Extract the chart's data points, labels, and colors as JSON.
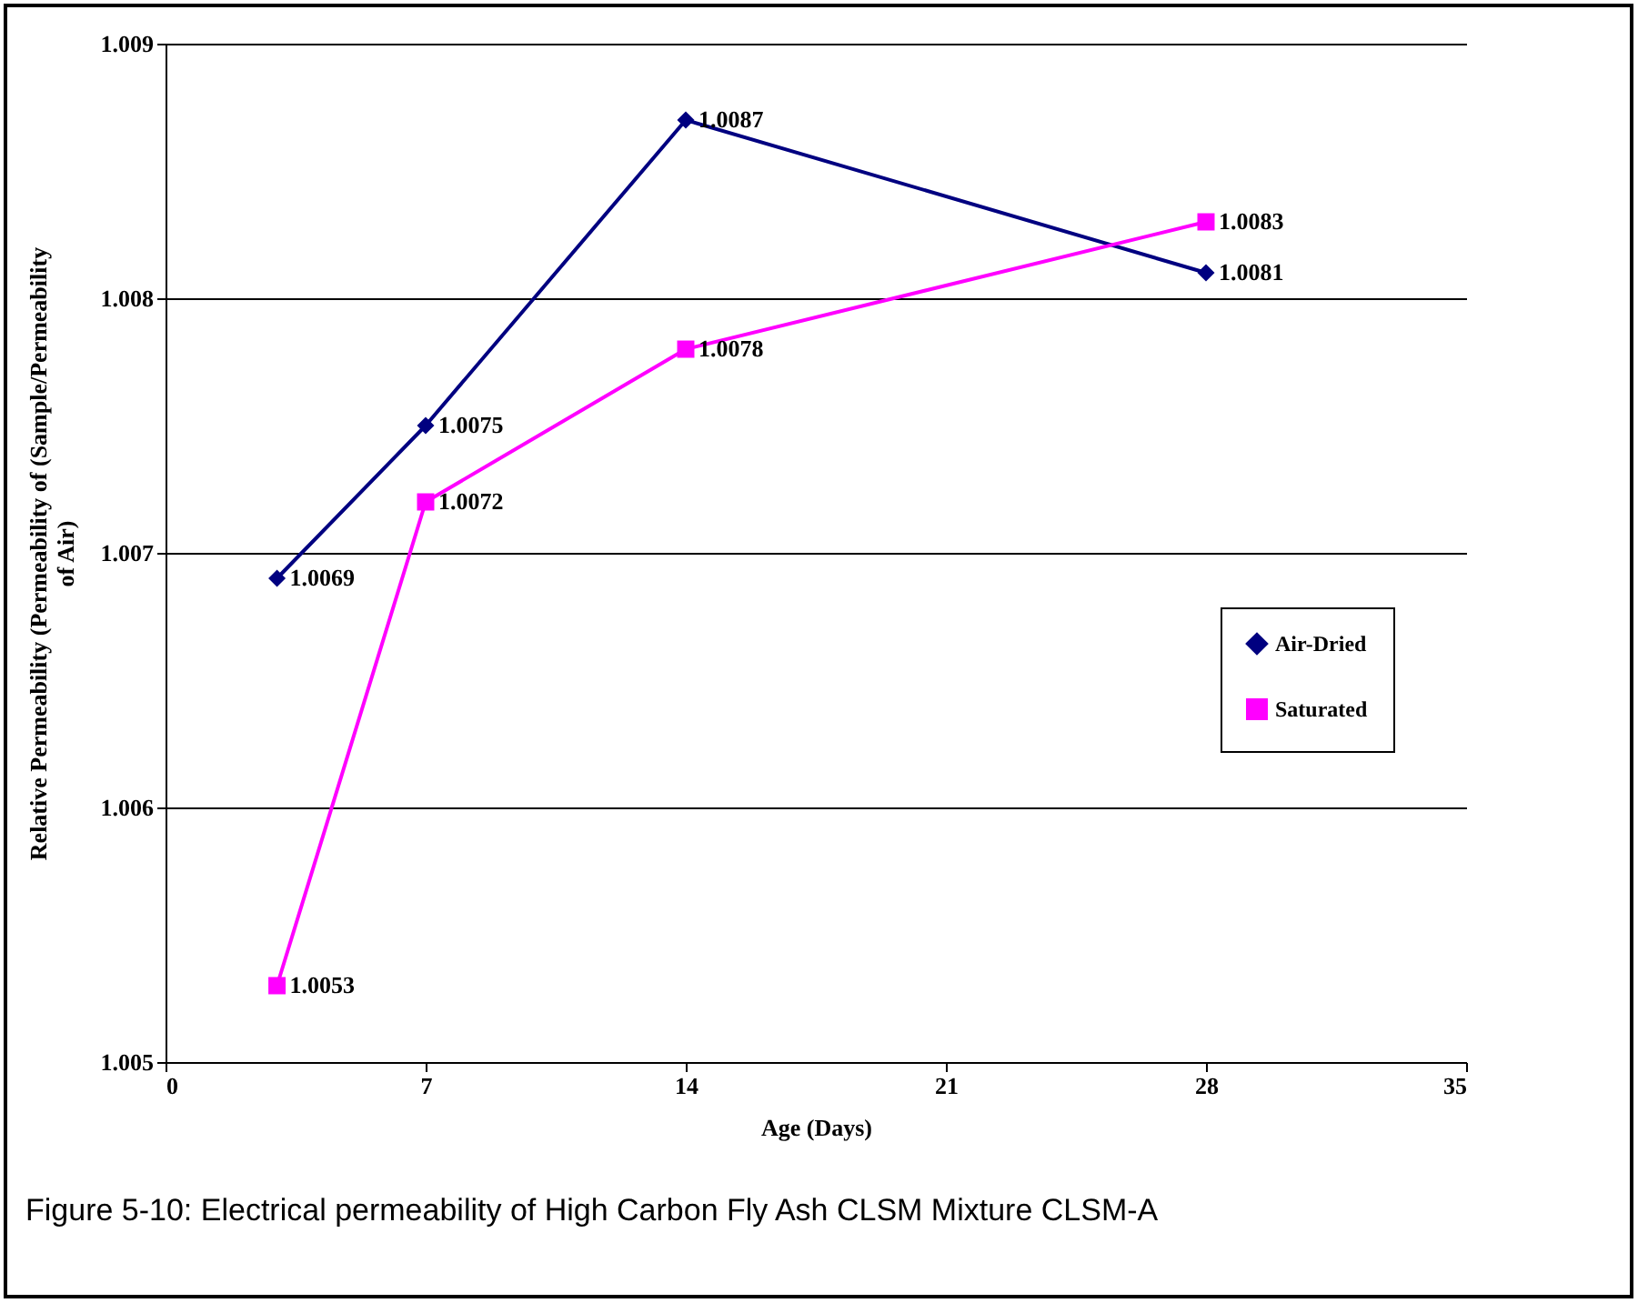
{
  "chart_data": {
    "type": "line",
    "x": [
      3,
      7,
      14,
      28
    ],
    "series": [
      {
        "name": "Air-Dried",
        "color": "#000080",
        "marker": "diamond",
        "values": [
          1.0069,
          1.0075,
          1.0087,
          1.0081
        ]
      },
      {
        "name": "Saturated",
        "color": "#ff00ff",
        "marker": "square",
        "values": [
          1.0053,
          1.0072,
          1.0078,
          1.0083
        ]
      }
    ],
    "xlabel": "Age (Days)",
    "ylabel": "Relative Permeability (Permeability of (Sample/Permeability of Air)",
    "xlim": [
      0,
      35
    ],
    "xticks": [
      0,
      7,
      14,
      21,
      28,
      35
    ],
    "ylim": [
      1.005,
      1.009
    ],
    "yticks": [
      1.005,
      1.006,
      1.007,
      1.008,
      1.009
    ],
    "grid": "y",
    "legend": "right",
    "data_labels": true,
    "line_style": "solid",
    "annotations": [
      "Figure 5-10: Electrical permeability of High Carbon Fly Ash CLSM Mixture CLSM-A"
    ]
  }
}
